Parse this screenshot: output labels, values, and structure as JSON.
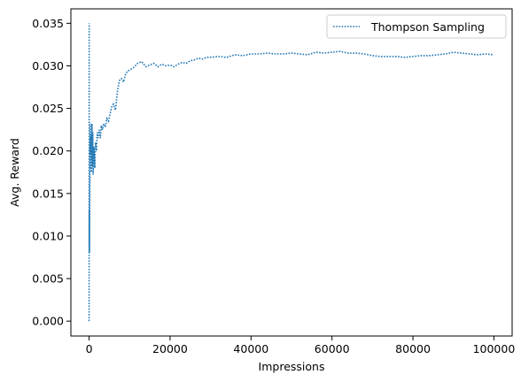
{
  "chart_data": {
    "type": "line",
    "title": "",
    "xlabel": "Impressions",
    "ylabel": "Avg. Reward",
    "xlim": [
      -4500,
      104500
    ],
    "ylim": [
      -0.00175,
      0.0367
    ],
    "x_ticks": [
      0,
      20000,
      40000,
      60000,
      80000,
      100000
    ],
    "x_tick_labels": [
      "0",
      "20000",
      "40000",
      "60000",
      "80000",
      "100000"
    ],
    "y_ticks": [
      0.0,
      0.005,
      0.01,
      0.015,
      0.02,
      0.025,
      0.03,
      0.035
    ],
    "y_tick_labels": [
      "0.000",
      "0.005",
      "0.010",
      "0.015",
      "0.020",
      "0.025",
      "0.030",
      "0.035"
    ],
    "grid": false,
    "legend_position": "top-right",
    "colors": {
      "series": "#1f77b4",
      "axes": "#000000",
      "legend_border": "#cccccc"
    },
    "series": [
      {
        "name": "Thompson Sampling",
        "line_style": "dotted",
        "x": [
          1,
          20,
          40,
          60,
          80,
          100,
          150,
          200,
          250,
          300,
          350,
          400,
          450,
          500,
          600,
          700,
          800,
          900,
          1000,
          1200,
          1400,
          1600,
          1800,
          2000,
          2200,
          2500,
          2800,
          3000,
          3300,
          3600,
          4000,
          4400,
          4800,
          5200,
          5600,
          6000,
          6500,
          7000,
          7500,
          8000,
          8500,
          9000,
          9500,
          10000,
          11000,
          12000,
          13000,
          14000,
          15000,
          16000,
          17000,
          18000,
          19000,
          20000,
          21000,
          22000,
          23000,
          24000,
          25000,
          26000,
          27000,
          28000,
          29000,
          30000,
          32000,
          34000,
          36000,
          38000,
          40000,
          42000,
          44000,
          46000,
          48000,
          50000,
          52000,
          54000,
          56000,
          58000,
          60000,
          62000,
          64000,
          66000,
          68000,
          70000,
          72000,
          74000,
          76000,
          78000,
          80000,
          82000,
          84000,
          86000,
          88000,
          90000,
          92000,
          94000,
          96000,
          98000,
          100000
        ],
        "y": [
          0.0,
          0.035,
          0.009,
          0.013,
          0.008,
          0.0105,
          0.0135,
          0.0168,
          0.0215,
          0.0232,
          0.0196,
          0.0215,
          0.018,
          0.022,
          0.0175,
          0.0232,
          0.0182,
          0.0222,
          0.0172,
          0.0205,
          0.018,
          0.021,
          0.02,
          0.0222,
          0.0215,
          0.0225,
          0.0215,
          0.023,
          0.0225,
          0.0232,
          0.0228,
          0.0238,
          0.0235,
          0.0244,
          0.0252,
          0.0255,
          0.0248,
          0.027,
          0.0283,
          0.0285,
          0.0281,
          0.029,
          0.0294,
          0.0295,
          0.0298,
          0.0303,
          0.0305,
          0.0299,
          0.0301,
          0.0303,
          0.0299,
          0.0302,
          0.03,
          0.0301,
          0.0299,
          0.0302,
          0.0304,
          0.0303,
          0.0306,
          0.0307,
          0.0309,
          0.0308,
          0.031,
          0.031,
          0.0311,
          0.031,
          0.0313,
          0.0312,
          0.0314,
          0.0314,
          0.0315,
          0.0314,
          0.0314,
          0.0315,
          0.0314,
          0.0313,
          0.0316,
          0.0315,
          0.0316,
          0.0317,
          0.0315,
          0.0315,
          0.0314,
          0.0312,
          0.0311,
          0.0311,
          0.0311,
          0.031,
          0.0311,
          0.0312,
          0.0312,
          0.0313,
          0.0314,
          0.0316,
          0.0315,
          0.0314,
          0.0313,
          0.0314,
          0.0313
        ]
      }
    ]
  }
}
